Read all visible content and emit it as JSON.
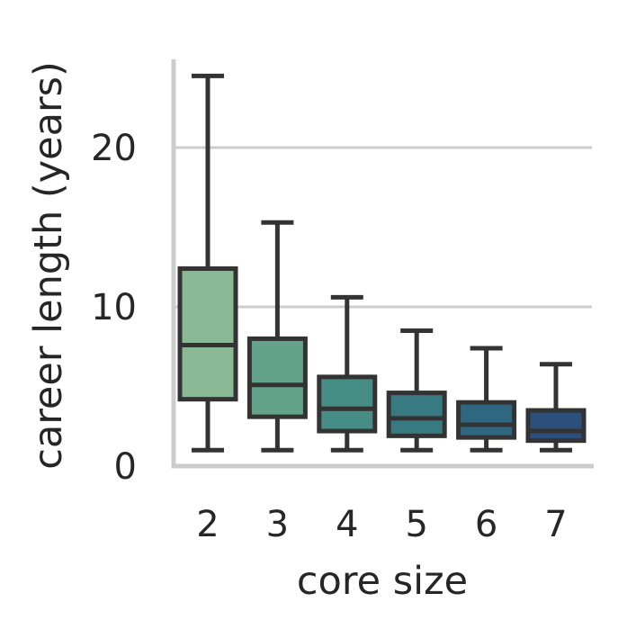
{
  "chart_data": {
    "type": "box",
    "title": "",
    "xlabel": "core size",
    "ylabel": "career length (years)",
    "categories": [
      "2",
      "3",
      "4",
      "5",
      "6",
      "7"
    ],
    "yticks": [
      0,
      10,
      20
    ],
    "ylim": [
      0,
      25.7
    ],
    "grid": "horizontal",
    "boxes": [
      {
        "category": "2",
        "whisker_low": 1.0,
        "q1": 4.2,
        "median": 7.6,
        "q3": 12.4,
        "whisker_high": 24.5,
        "color": "#8ab996"
      },
      {
        "category": "3",
        "whisker_low": 1.0,
        "q1": 3.1,
        "median": 5.1,
        "q3": 8.0,
        "whisker_high": 15.3,
        "color": "#63a38c"
      },
      {
        "category": "4",
        "whisker_low": 1.0,
        "q1": 2.2,
        "median": 3.6,
        "q3": 5.6,
        "whisker_high": 10.6,
        "color": "#468d85"
      },
      {
        "category": "5",
        "whisker_low": 1.0,
        "q1": 1.9,
        "median": 3.0,
        "q3": 4.6,
        "whisker_high": 8.5,
        "color": "#377a82"
      },
      {
        "category": "6",
        "whisker_low": 1.0,
        "q1": 1.8,
        "median": 2.6,
        "q3": 4.0,
        "whisker_high": 7.4,
        "color": "#2f6680"
      },
      {
        "category": "7",
        "whisker_low": 1.0,
        "q1": 1.6,
        "median": 2.2,
        "q3": 3.5,
        "whisker_high": 6.4,
        "color": "#2d4f7c"
      }
    ]
  }
}
